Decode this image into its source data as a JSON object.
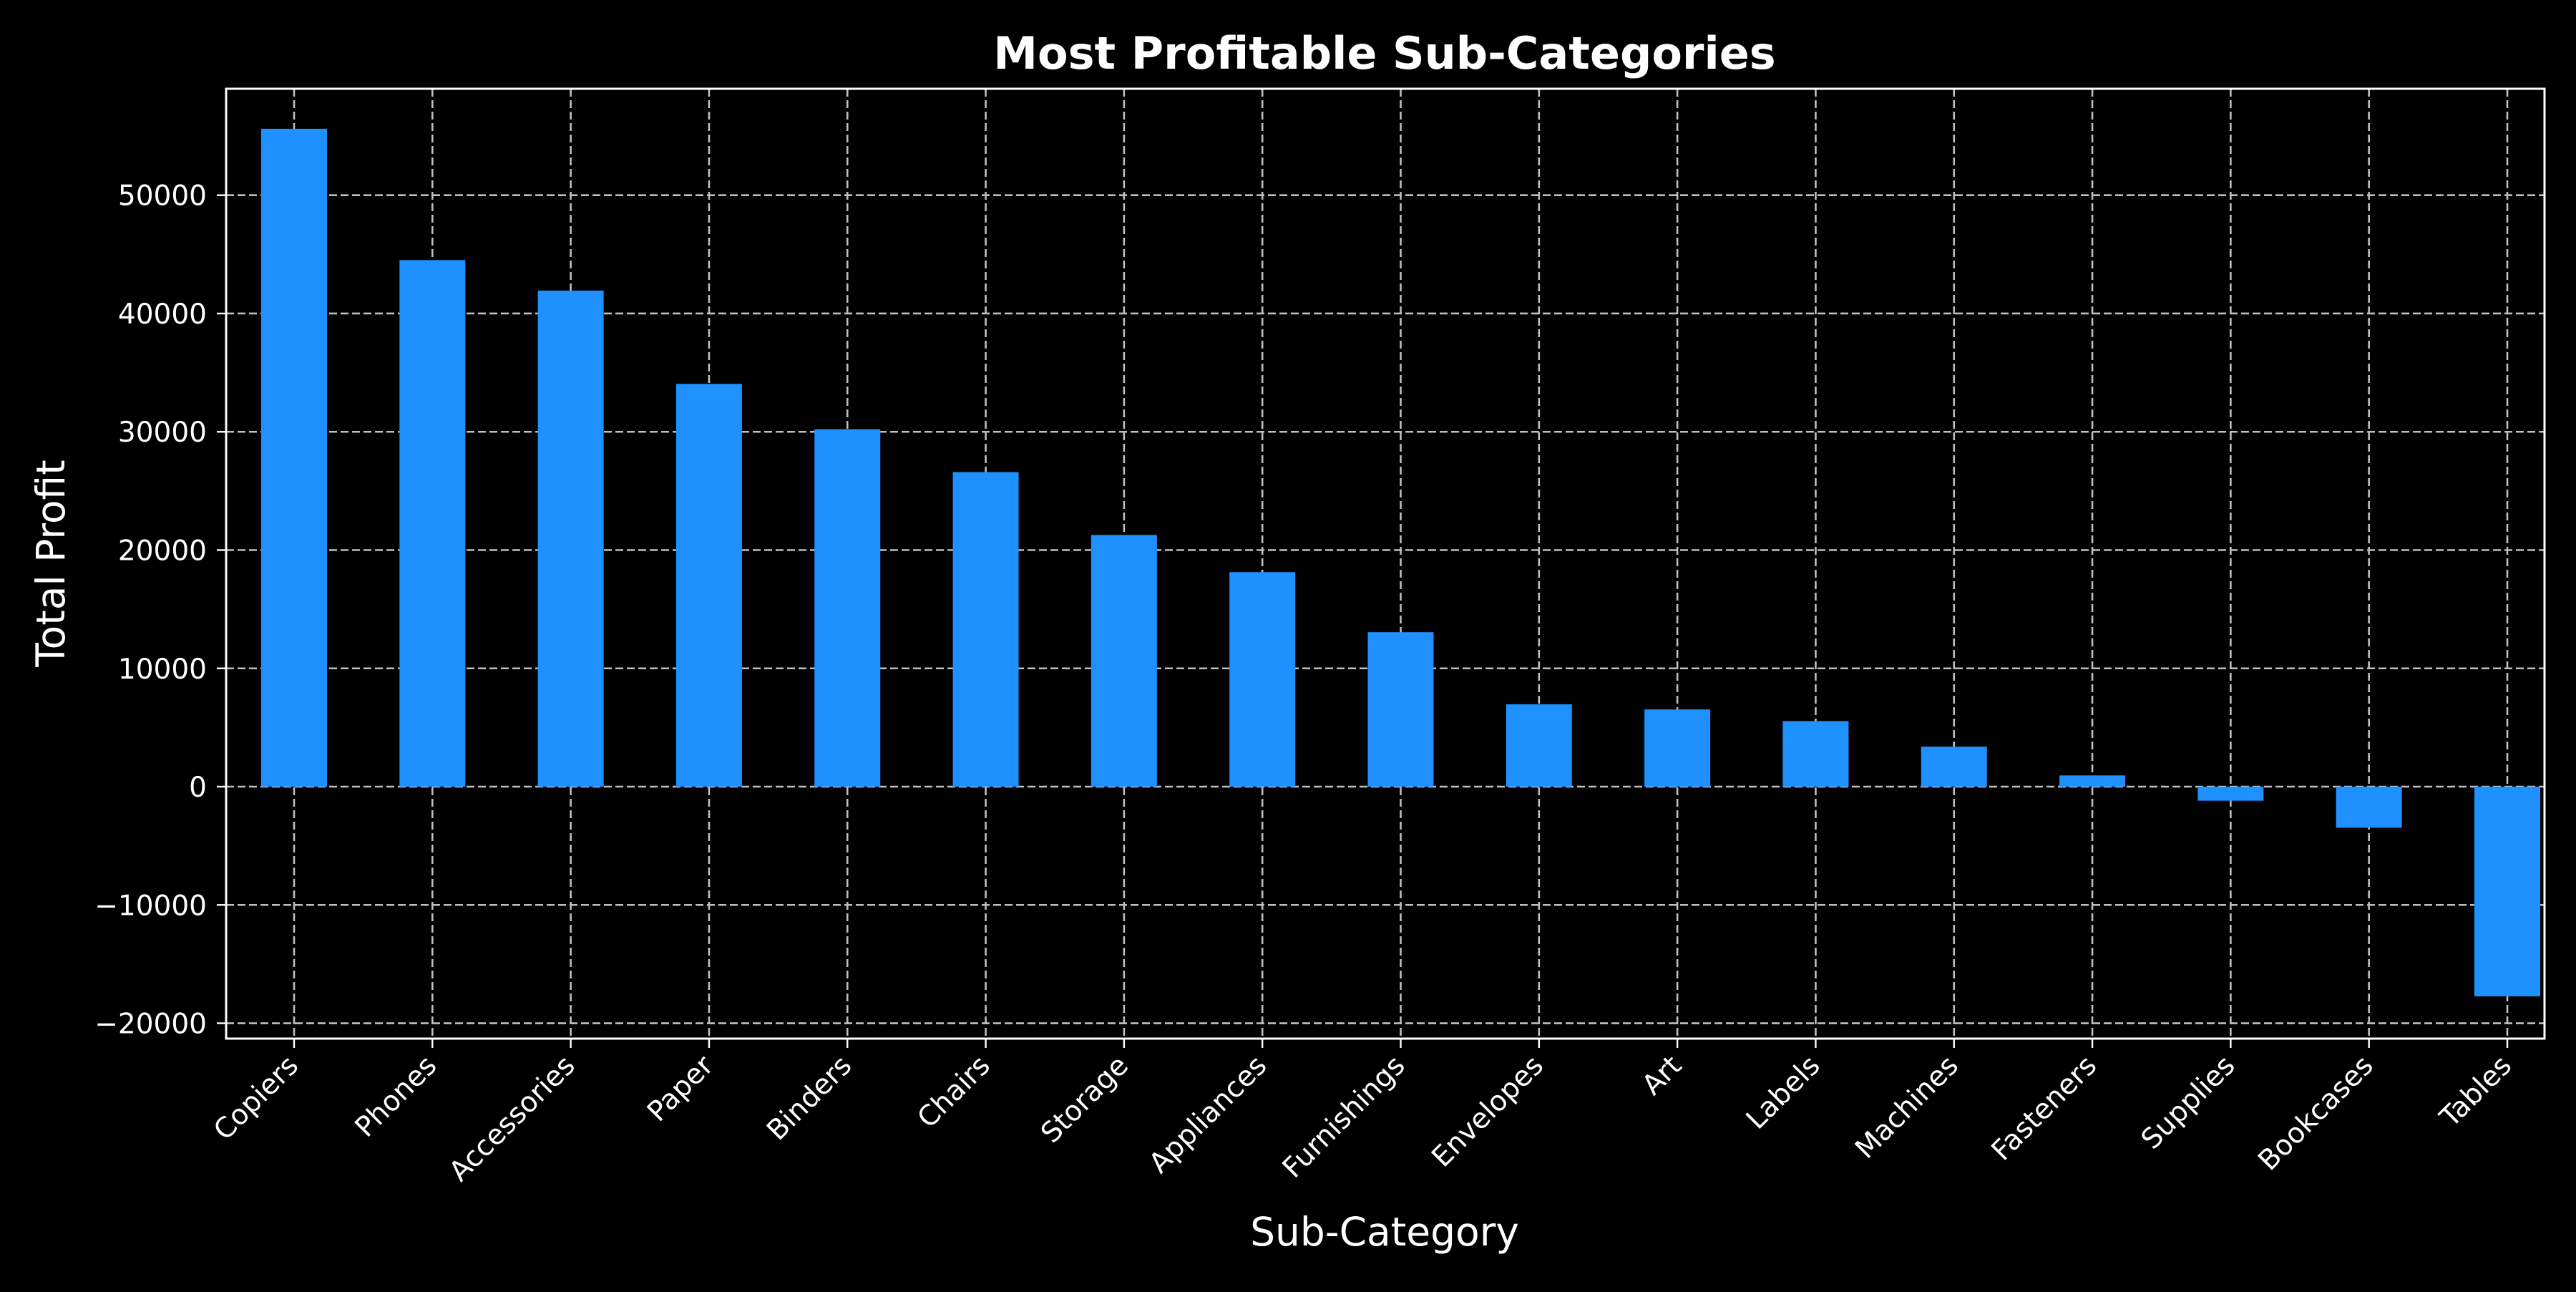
{
  "chart_data": {
    "type": "bar",
    "title": "Most Profitable Sub-Categories",
    "xlabel": "Sub-Category",
    "ylabel": "Total Profit",
    "categories": [
      "Copiers",
      "Phones",
      "Accessories",
      "Paper",
      "Binders",
      "Chairs",
      "Storage",
      "Appliances",
      "Furnishings",
      "Envelopes",
      "Art",
      "Labels",
      "Machines",
      "Fasteners",
      "Supplies",
      "Bookcases",
      "Tables"
    ],
    "values": [
      55618,
      44516,
      41937,
      34054,
      30222,
      26590,
      21279,
      18138,
      13059,
      6964,
      6528,
      5546,
      3385,
      950,
      -1189,
      -3473,
      -17725
    ],
    "yticks": [
      -20000,
      -10000,
      0,
      10000,
      20000,
      30000,
      40000,
      50000
    ],
    "ytick_labels": [
      "−20000",
      "−10000",
      "0",
      "10000",
      "20000",
      "30000",
      "40000",
      "50000"
    ],
    "ylim": [
      -21300,
      59000
    ],
    "grid": true,
    "bar_color": "#1e90ff",
    "background_color": "#000000",
    "text_color": "#ffffff"
  }
}
